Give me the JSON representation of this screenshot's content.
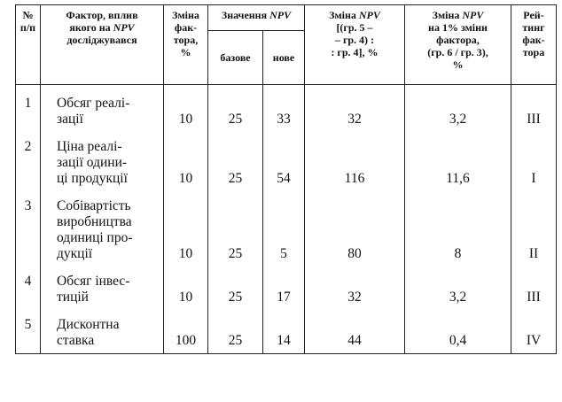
{
  "header": {
    "no": "№\nп/п",
    "factor_pre": "Фактор, вплив\nякого на ",
    "factor_npv": "NPV",
    "factor_post": "\nдосліджувався",
    "change": "Зміна\nфак-\nтора,\n%",
    "npv_values_pre": "Значення ",
    "npv_values_npv": "NPV",
    "base": "базове",
    "new": "нове",
    "npv_change_pre": "Зміна ",
    "npv_change_npv": "NPV",
    "npv_change_post": "\n[(гр. 5 –\n– гр. 4) :\n: гр. 4], %",
    "per1_pre": "Зміна ",
    "per1_npv": "NPV",
    "per1_post": "\nна 1% зміни\nфактора,\n(гр. 6 / гр. 3),\n%",
    "rating": "Рей-\nтинг\nфак-\nтора"
  },
  "rows": [
    {
      "no": "1",
      "factor": "Обсяг реалі-\nзації",
      "change": "10",
      "base": "25",
      "new": "33",
      "npv_change": "32",
      "per1": "3,2",
      "rating": "III"
    },
    {
      "no": "2",
      "factor": "Ціна реалі-\nзації одини-\nці продукції",
      "change": "10",
      "base": "25",
      "new": "54",
      "npv_change": "116",
      "per1": "11,6",
      "rating": "I"
    },
    {
      "no": "3",
      "factor": "Собівартість\nвиробництва\nодиниці про-\nдукції",
      "change": "10",
      "base": "25",
      "new": "5",
      "npv_change": "80",
      "per1": "8",
      "rating": "II"
    },
    {
      "no": "4",
      "factor": "Обсяг інвес-\nтицій",
      "change": "10",
      "base": "25",
      "new": "17",
      "npv_change": "32",
      "per1": "3,2",
      "rating": "III"
    },
    {
      "no": "5",
      "factor": "Дисконтна\nставка",
      "change": "100",
      "base": "25",
      "new": "14",
      "npv_change": "44",
      "per1": "0,4",
      "rating": "IV"
    }
  ]
}
